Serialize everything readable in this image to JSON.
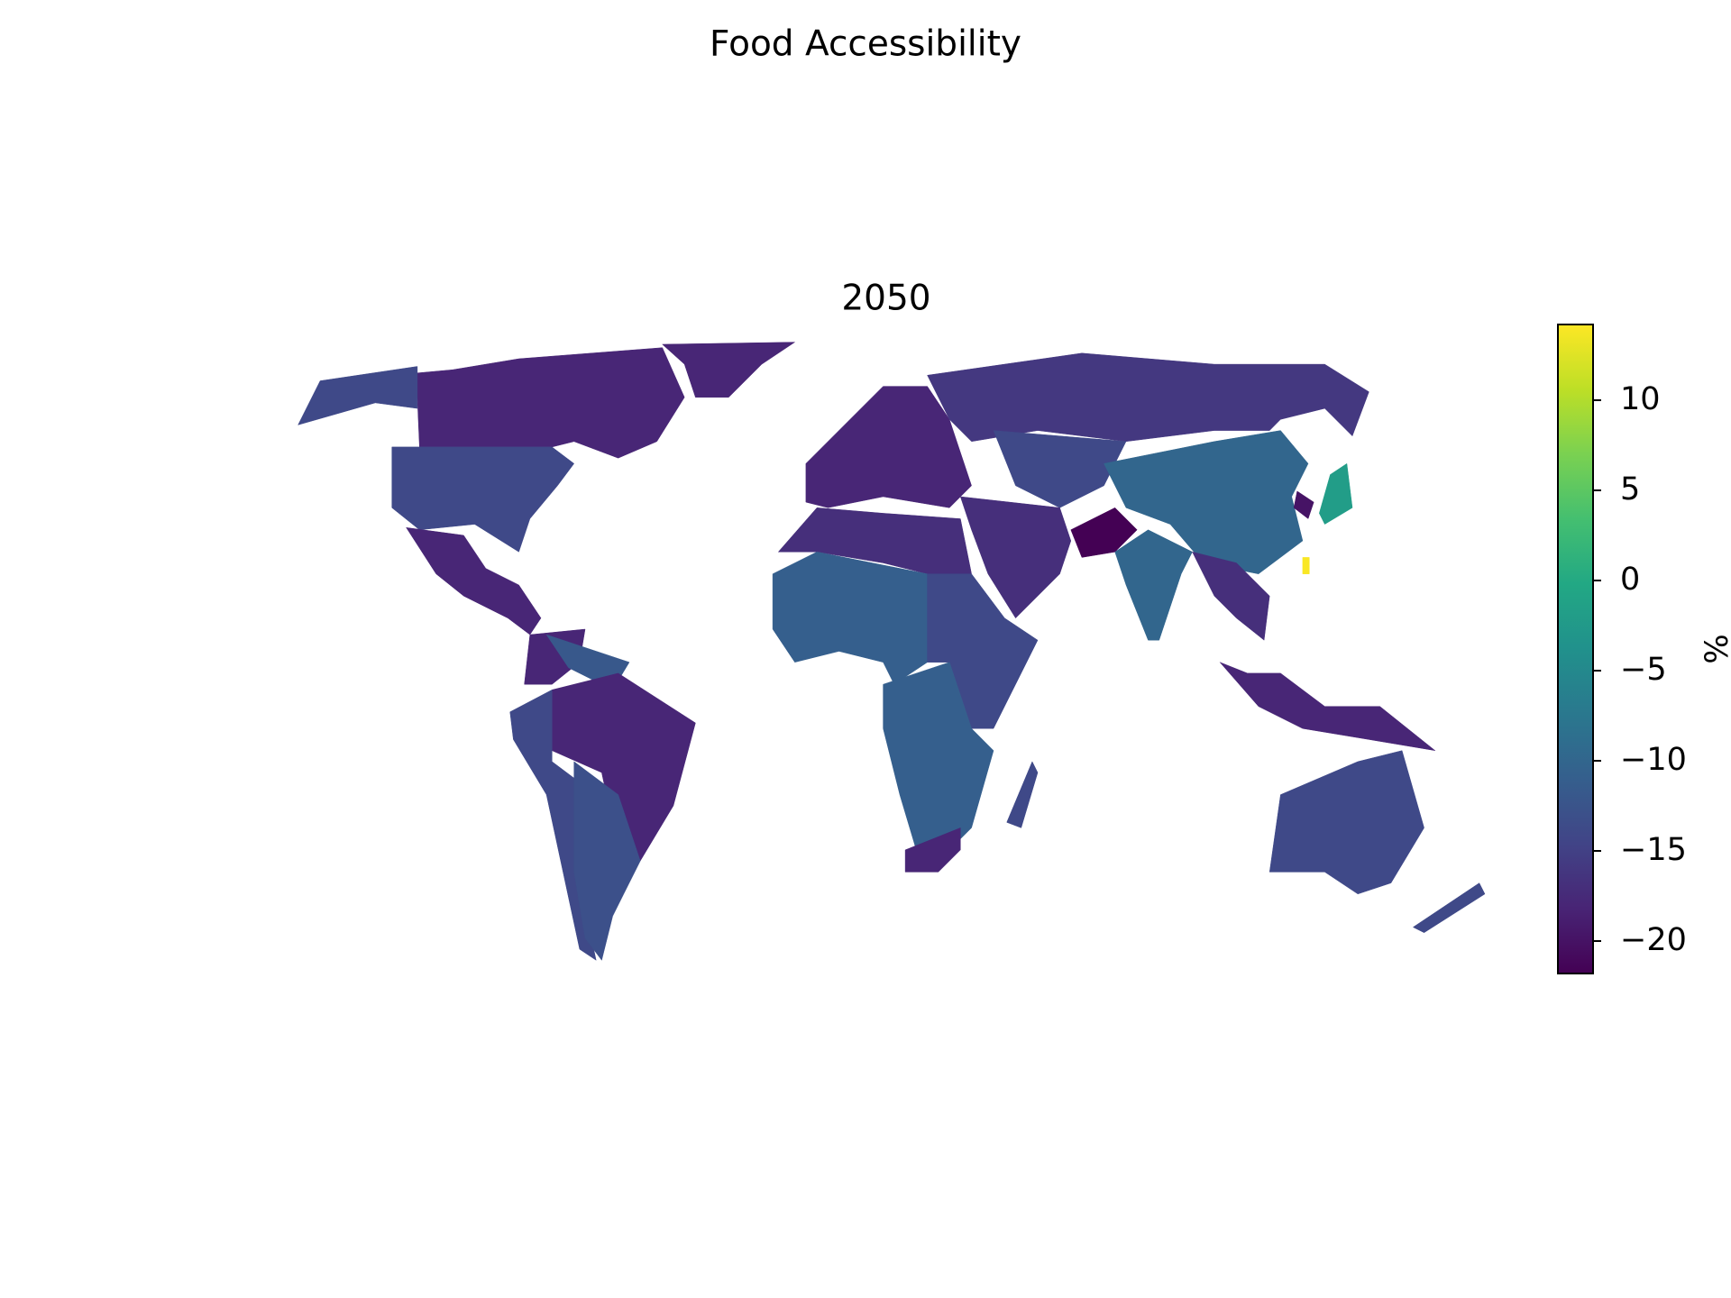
{
  "chart_data": {
    "type": "choropleth",
    "title": "Food Accessibility",
    "subtitle": "2050",
    "values": [
      -18,
      -14,
      -18,
      -14,
      -18,
      -18,
      -12,
      -18,
      -14,
      -13,
      -18,
      -16,
      -14,
      -10,
      -17,
      -17,
      -22,
      -10,
      -17,
      -11,
      -14,
      -11,
      -18,
      -14,
      -18,
      -14,
      -14,
      -2,
      -20,
      14
    ],
    "colormap": "viridis",
    "ylim": [
      -21.8,
      14.2
    ],
    "yticks": [
      {
        "value": -20,
        "label": "−20"
      },
      {
        "value": -15,
        "label": "−15"
      },
      {
        "value": -10,
        "label": "−10"
      },
      {
        "value": -5,
        "label": "−5"
      },
      0,
      5,
      10
    ],
    "colorbar_label": "%"
  }
}
